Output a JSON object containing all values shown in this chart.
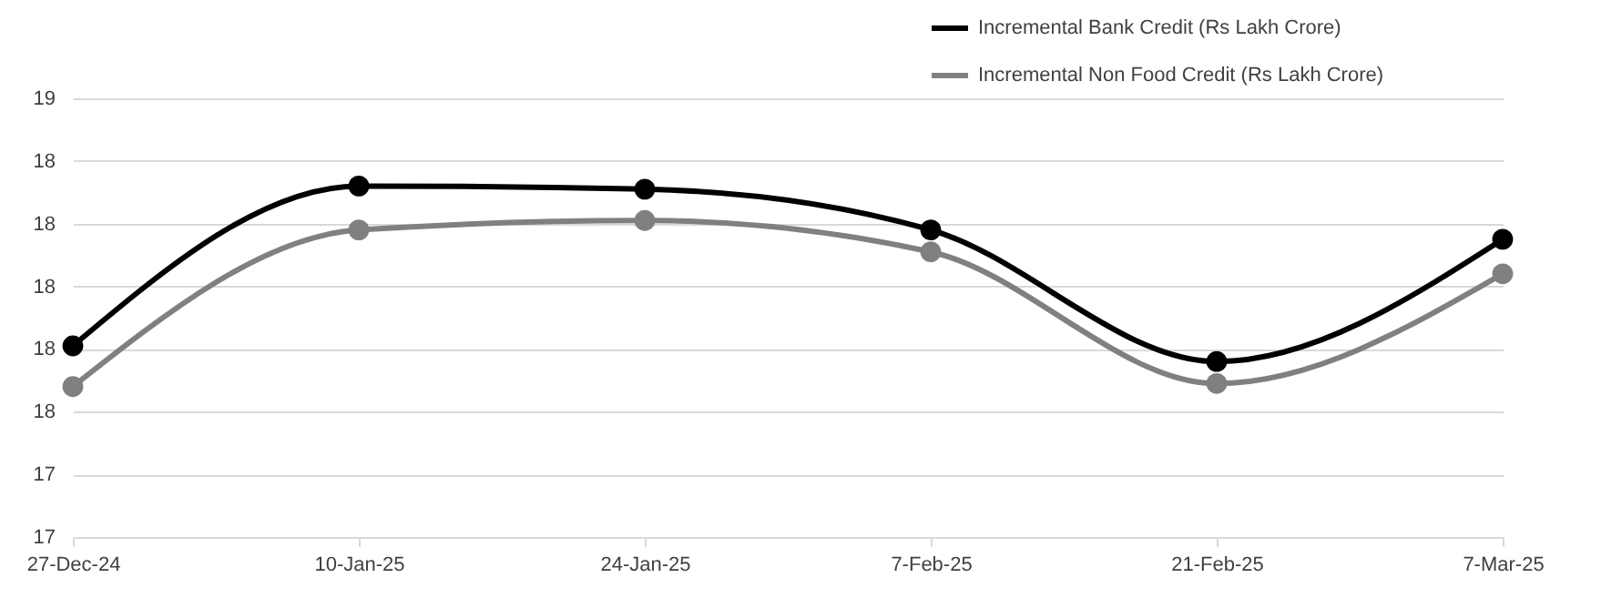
{
  "chart_data": {
    "type": "line",
    "categories": [
      "27-Dec-24",
      "10-Jan-25",
      "24-Jan-25",
      "7-Feb-25",
      "21-Feb-25",
      "7-Mar-25"
    ],
    "series": [
      {
        "name": "Incremental Bank Credit (Rs Lakh Crore)",
        "color": "#000000",
        "values": [
          17.81,
          18.32,
          18.31,
          18.18,
          17.76,
          18.15
        ]
      },
      {
        "name": "Incremental Non Food Credit (Rs Lakh Crore)",
        "color": "#808080",
        "values": [
          17.68,
          18.18,
          18.21,
          18.11,
          17.69,
          18.04
        ]
      }
    ],
    "ylim": [
      17.2,
      18.6
    ],
    "yticks": [
      {
        "value": 17.2,
        "label": "17"
      },
      {
        "value": 17.4,
        "label": "17"
      },
      {
        "value": 17.6,
        "label": "18"
      },
      {
        "value": 17.8,
        "label": "18"
      },
      {
        "value": 18.0,
        "label": "18"
      },
      {
        "value": 18.2,
        "label": "18"
      },
      {
        "value": 18.4,
        "label": "18"
      },
      {
        "value": 18.6,
        "label": "19"
      }
    ],
    "grid": "y",
    "legend": "top right",
    "marker": "circle",
    "line_style": "solid"
  }
}
